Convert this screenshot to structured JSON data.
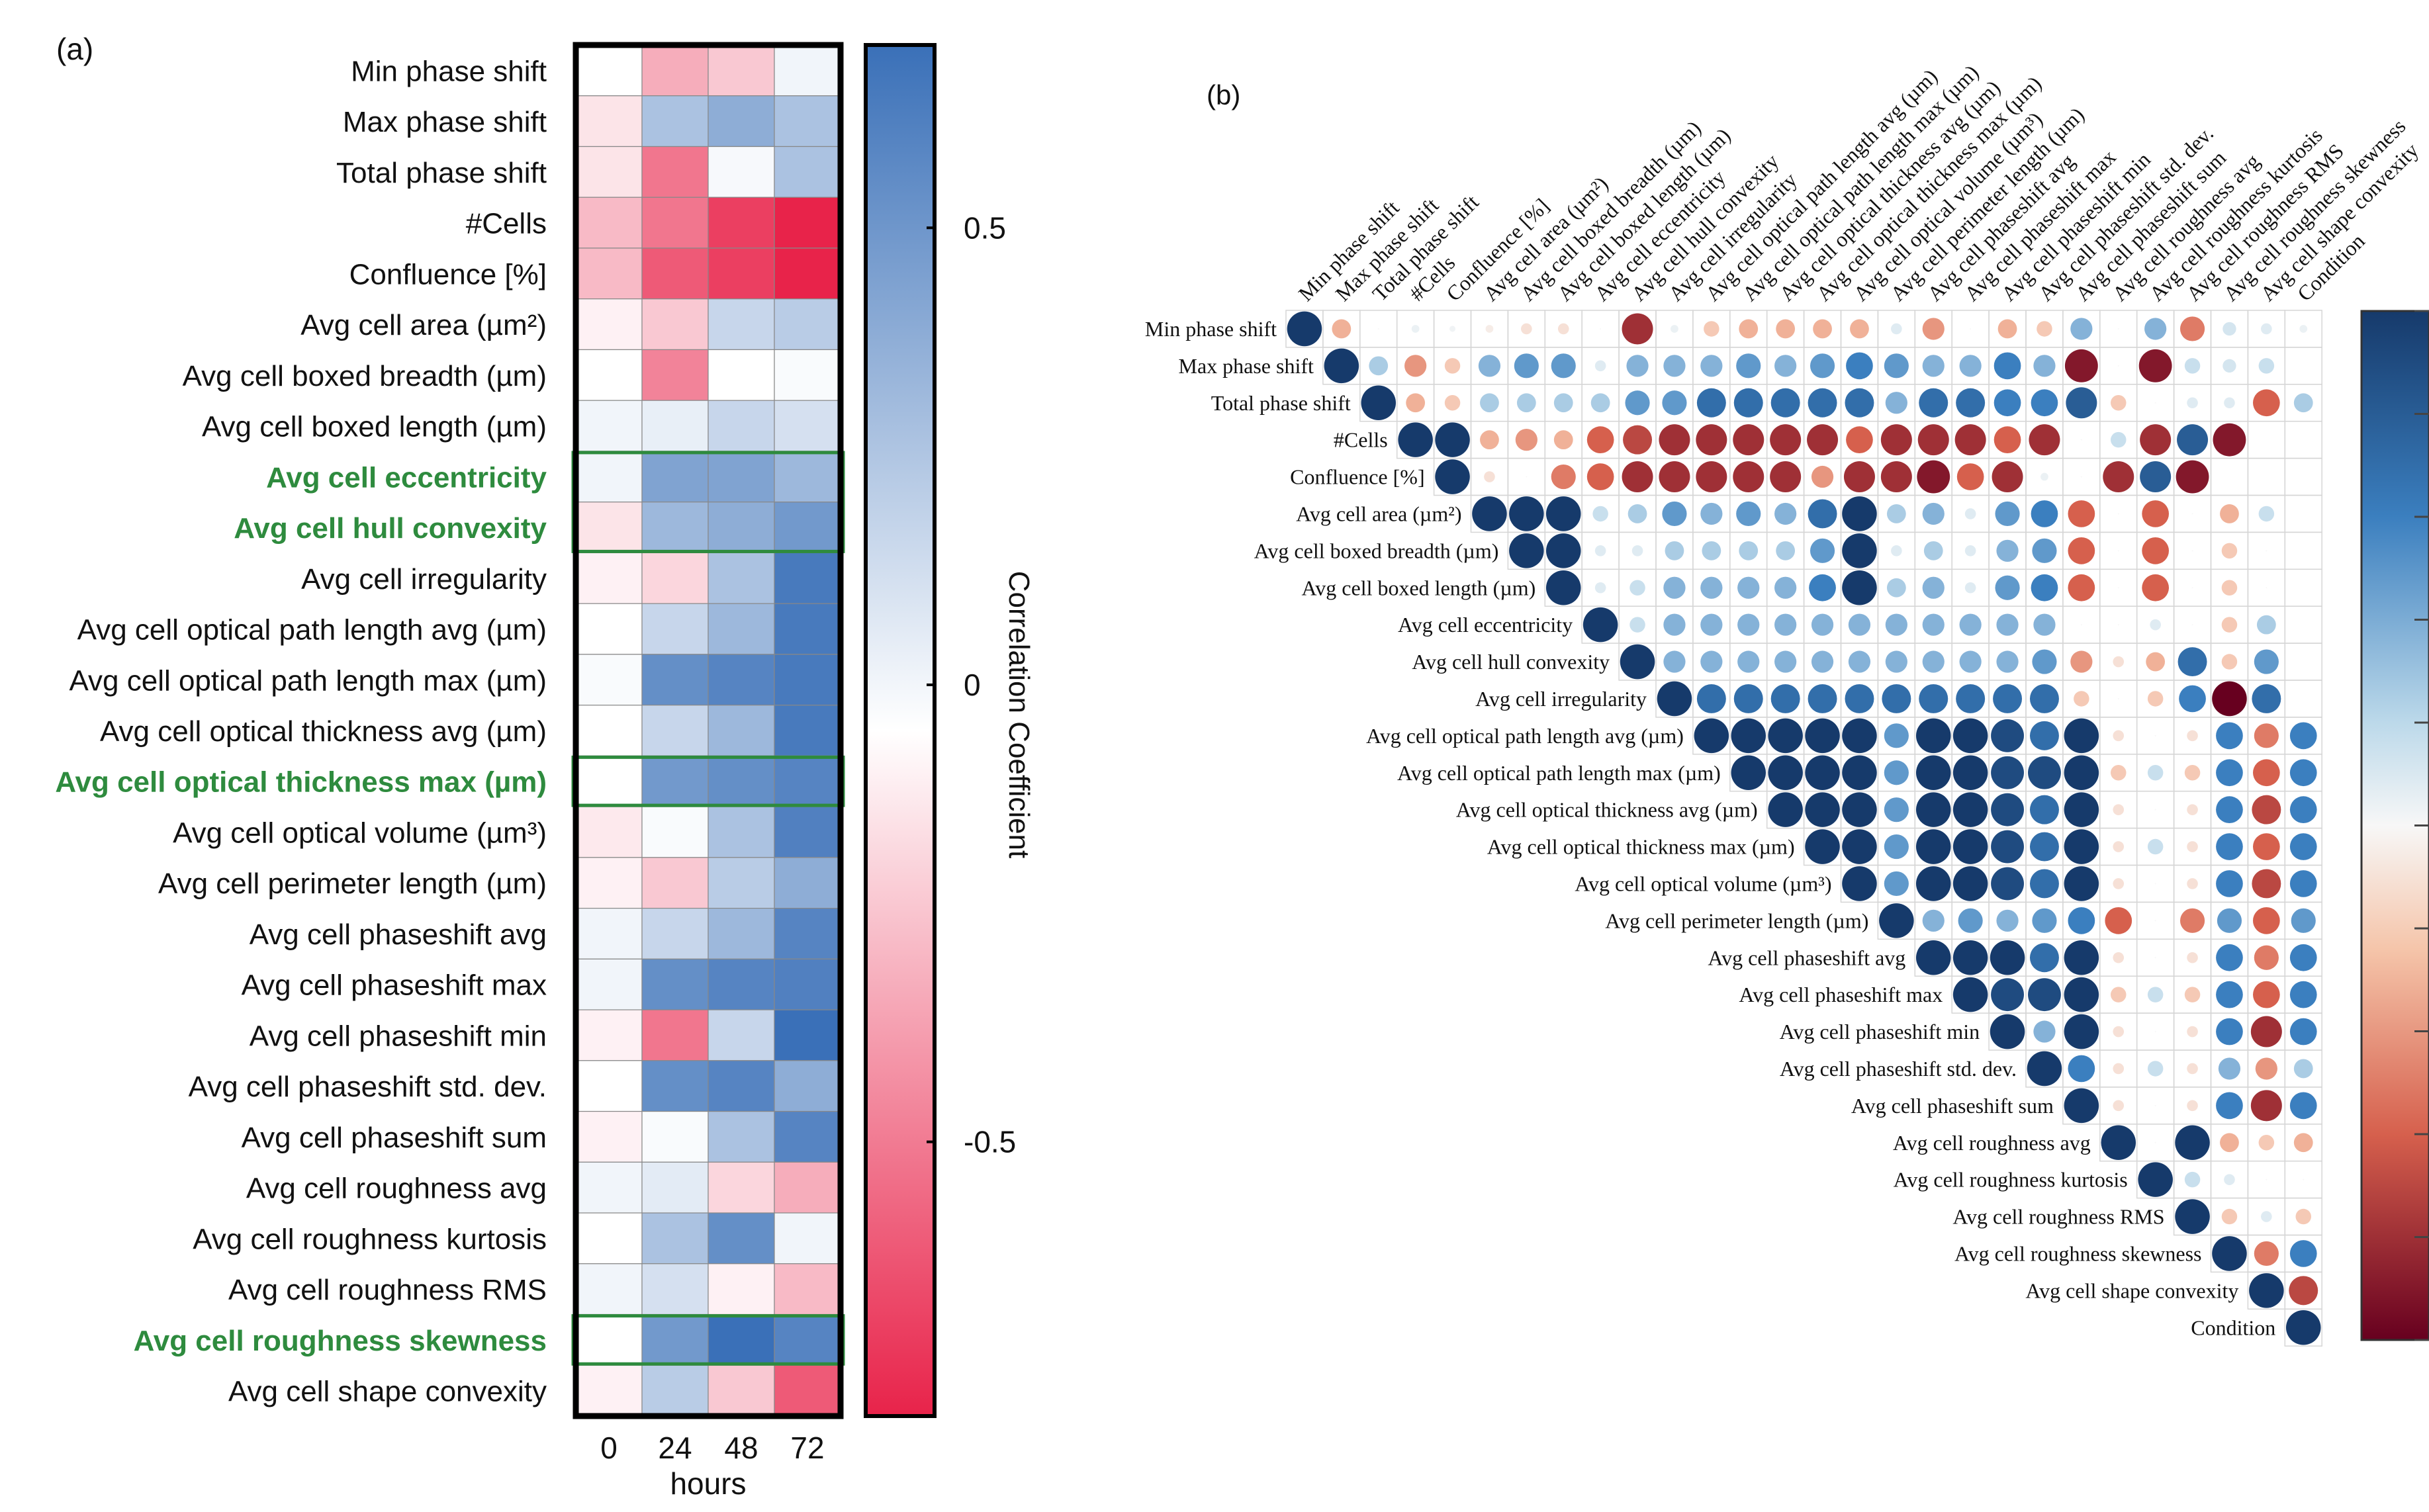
{
  "panel_a": {
    "label": "(a)",
    "colorbar": {
      "title": "Correlation Coefficient",
      "ticks": [
        "0.5",
        "0",
        "-0.5"
      ]
    },
    "x_ticks": [
      "0",
      "24",
      "48",
      "72"
    ],
    "x_label": "hours"
  },
  "panel_b": {
    "label": "(b)"
  },
  "chart_data": [
    {
      "type": "heatmap",
      "panel": "(a)",
      "xlabel": "hours",
      "colorbar_label": "Correlation Coefficient",
      "value_range": [
        -0.8,
        0.7
      ],
      "categories_x": [
        "0",
        "24",
        "48",
        "72"
      ],
      "categories_y": [
        "Min phase shift",
        "Max phase shift",
        "Total phase shift",
        "#Cells",
        "Confluence [%]",
        "Avg cell area (µm²)",
        "Avg cell boxed breadth (µm)",
        "Avg cell boxed length (µm)",
        "Avg cell eccentricity",
        "Avg cell hull convexity",
        "Avg cell irregularity",
        "Avg cell optical path length avg (µm)",
        "Avg cell optical path length max (µm)",
        "Avg cell optical thickness avg (µm)",
        "Avg cell optical thickness max (µm)",
        "Avg cell optical volume (µm³)",
        "Avg cell perimeter length (µm)",
        "Avg cell phaseshift avg",
        "Avg cell phaseshift max",
        "Avg cell phaseshift min",
        "Avg cell phaseshift std. dev.",
        "Avg cell phaseshift sum",
        "Avg cell roughness avg",
        "Avg cell roughness kurtosis",
        "Avg cell roughness RMS",
        "Avg cell roughness skewness",
        "Avg cell shape convexity"
      ],
      "highlighted_rows": [
        "Avg cell eccentricity",
        "Avg cell hull convexity",
        "Avg cell optical thickness max (µm)",
        "Avg cell roughness skewness"
      ],
      "values": [
        [
          0.0,
          -0.3,
          -0.2,
          0.05
        ],
        [
          -0.1,
          0.3,
          0.4,
          0.3
        ],
        [
          -0.1,
          -0.5,
          0.03,
          0.3
        ],
        [
          -0.25,
          -0.5,
          -0.7,
          -0.8
        ],
        [
          -0.25,
          -0.6,
          -0.7,
          -0.8
        ],
        [
          -0.05,
          -0.2,
          0.2,
          0.25
        ],
        [
          0.0,
          -0.45,
          0.0,
          0.02
        ],
        [
          0.05,
          0.08,
          0.2,
          0.15
        ],
        [
          0.05,
          0.45,
          0.45,
          0.35
        ],
        [
          -0.1,
          0.35,
          0.4,
          0.5
        ],
        [
          -0.05,
          -0.15,
          0.3,
          0.65
        ],
        [
          0.0,
          0.2,
          0.35,
          0.65
        ],
        [
          0.02,
          0.55,
          0.6,
          0.65
        ],
        [
          0.0,
          0.2,
          0.35,
          0.65
        ],
        [
          0.0,
          0.5,
          0.55,
          0.6
        ],
        [
          -0.08,
          0.02,
          0.3,
          0.62
        ],
        [
          -0.05,
          -0.2,
          0.25,
          0.4
        ],
        [
          0.05,
          0.2,
          0.35,
          0.6
        ],
        [
          0.05,
          0.55,
          0.6,
          0.62
        ],
        [
          -0.05,
          -0.5,
          0.2,
          0.7
        ],
        [
          0.0,
          0.55,
          0.6,
          0.4
        ],
        [
          -0.05,
          0.02,
          0.3,
          0.6
        ],
        [
          0.05,
          0.1,
          -0.15,
          -0.3
        ],
        [
          0.0,
          0.3,
          0.55,
          0.05
        ],
        [
          0.05,
          0.15,
          -0.05,
          -0.25
        ],
        [
          0.0,
          0.5,
          0.7,
          0.6
        ],
        [
          -0.05,
          0.25,
          -0.2,
          -0.6
        ]
      ]
    },
    {
      "type": "heatmap",
      "panel": "(b)",
      "subtype": "correlation-matrix-upper-triangle",
      "value_range": [
        -1,
        1
      ],
      "variables": [
        "Min phase shift",
        "Max phase shift",
        "Total phase shift",
        "#Cells",
        "Confluence [%]",
        "Avg cell area (µm²)",
        "Avg cell boxed breadth (µm)",
        "Avg cell boxed length (µm)",
        "Avg cell eccentricity",
        "Avg cell hull convexity",
        "Avg cell irregularity",
        "Avg cell optical path length avg (µm)",
        "Avg cell optical path length max (µm)",
        "Avg cell optical thickness avg (µm)",
        "Avg cell optical thickness max (µm)",
        "Avg cell optical volume (µm³)",
        "Avg cell perimeter length (µm)",
        "Avg cell phaseshift avg",
        "Avg cell phaseshift max",
        "Avg cell phaseshift min",
        "Avg cell phaseshift std. dev.",
        "Avg cell phaseshift sum",
        "Avg cell roughness avg",
        "Avg cell roughness kurtosis",
        "Avg cell roughness RMS",
        "Avg cell roughness skewness",
        "Avg cell shape convexity",
        "Condition"
      ],
      "upper_triangle_rows": [
        [
          1,
          -0.3,
          0,
          0.05,
          0.03,
          -0.05,
          -0.1,
          -0.1,
          0,
          -0.8,
          0.05,
          -0.2,
          -0.3,
          -0.3,
          -0.3,
          -0.3,
          0.1,
          -0.4,
          0,
          -0.3,
          -0.2,
          0.4,
          0,
          0.4,
          -0.5,
          0.15,
          0.1,
          0.05
        ],
        [
          1,
          0.3,
          -0.4,
          -0.2,
          0.4,
          0.5,
          0.5,
          0.1,
          0.4,
          0.4,
          0.4,
          0.5,
          0.4,
          0.5,
          0.6,
          0.5,
          0.4,
          0.4,
          0.6,
          0.4,
          -0.9,
          0,
          -0.9,
          0.2,
          0.15,
          0.2
        ],
        [
          1,
          -0.3,
          -0.2,
          0.3,
          0.3,
          0.3,
          0.3,
          0.5,
          0.5,
          0.7,
          0.7,
          0.7,
          0.7,
          0.7,
          0.4,
          0.7,
          0.7,
          0.6,
          0.6,
          0.8,
          -0.2,
          0,
          0.1,
          0.1,
          -0.6,
          0.3
        ],
        [
          1,
          1,
          -0.3,
          -0.4,
          -0.3,
          -0.6,
          -0.7,
          -0.8,
          -0.8,
          -0.8,
          -0.8,
          -0.8,
          -0.6,
          -0.8,
          -0.8,
          -0.8,
          -0.6,
          -0.8,
          0,
          0.2,
          -0.8,
          0.8,
          -0.9
        ],
        [
          1,
          -0.1,
          0,
          -0.5,
          -0.6,
          -0.8,
          -0.8,
          -0.8,
          -0.8,
          -0.8,
          -0.4,
          -0.8,
          -0.8,
          -0.9,
          -0.6,
          -0.8,
          0.05,
          0,
          -0.8,
          0.8,
          -0.9
        ],
        [
          1,
          1,
          1,
          0.2,
          0.3,
          0.5,
          0.4,
          0.5,
          0.4,
          0.7,
          1,
          0.3,
          0.4,
          0.1,
          0.5,
          0.6,
          -0.6,
          0,
          -0.6,
          0,
          -0.3,
          0.2
        ],
        [
          1,
          1,
          0.1,
          0.1,
          0.3,
          0.3,
          0.3,
          0.3,
          0.5,
          1,
          0.1,
          0.3,
          0.1,
          0.4,
          0.5,
          -0.6,
          0,
          -0.6,
          0,
          -0.2,
          0
        ],
        [
          1,
          0.1,
          0.2,
          0.4,
          0.4,
          0.4,
          0.4,
          0.6,
          1,
          0.3,
          0.4,
          0.1,
          0.5,
          0.6,
          -0.6,
          0,
          -0.6,
          0,
          -0.2,
          0
        ],
        [
          1,
          0.2,
          0.4,
          0.4,
          0.4,
          0.4,
          0.4,
          0.4,
          0.4,
          0.4,
          0.4,
          0.4,
          0.4,
          0,
          0,
          0.1,
          0,
          -0.2,
          0.3
        ],
        [
          1,
          0.4,
          0.4,
          0.4,
          0.4,
          0.4,
          0.4,
          0.4,
          0.4,
          0.4,
          0.4,
          0.5,
          -0.4,
          -0.1,
          -0.3,
          0.7,
          -0.2,
          0.5
        ],
        [
          1,
          0.7,
          0.7,
          0.7,
          0.7,
          0.7,
          0.7,
          0.7,
          0.7,
          0.7,
          0.7,
          -0.2,
          0,
          -0.2,
          0.6,
          -1,
          0.7
        ],
        [
          1,
          1,
          1,
          1,
          1,
          0.5,
          1,
          1,
          0.9,
          0.7,
          1,
          -0.1,
          0,
          -0.1,
          0.6,
          -0.5,
          0.6
        ],
        [
          1,
          1,
          1,
          1,
          0.5,
          1,
          1,
          0.9,
          0.9,
          1,
          -0.2,
          0.2,
          -0.2,
          0.6,
          -0.6,
          0.6
        ],
        [
          1,
          1,
          1,
          0.5,
          1,
          1,
          0.9,
          0.7,
          1,
          -0.1,
          0,
          -0.1,
          0.6,
          -0.7,
          0.6
        ],
        [
          1,
          1,
          0.5,
          1,
          1,
          0.9,
          0.7,
          1,
          -0.1,
          0.2,
          -0.1,
          0.6,
          -0.6,
          0.6
        ],
        [
          1,
          0.5,
          1,
          1,
          0.9,
          0.7,
          1,
          -0.1,
          0,
          -0.1,
          0.6,
          -0.7,
          0.6
        ],
        [
          1,
          0.4,
          0.5,
          0.4,
          0.5,
          0.6,
          -0.6,
          0,
          -0.5,
          0.5,
          -0.6,
          0.5
        ],
        [
          1,
          1,
          1,
          0.7,
          1,
          -0.1,
          0,
          -0.1,
          0.6,
          -0.5,
          0.6
        ],
        [
          1,
          0.9,
          0.9,
          1,
          -0.2,
          0.2,
          -0.2,
          0.6,
          -0.6,
          0.6
        ],
        [
          1,
          0.4,
          1,
          -0.1,
          0,
          -0.1,
          0.6,
          -0.8,
          0.6
        ],
        [
          1,
          0.6,
          -0.1,
          0.2,
          -0.1,
          0.4,
          -0.4,
          0.3
        ],
        [
          1,
          -0.1,
          0,
          -0.1,
          0.6,
          -0.8,
          0.6
        ],
        [
          1,
          0,
          1,
          -0.3,
          -0.2,
          -0.3
        ],
        [
          1,
          0.2,
          0.1,
          0,
          0
        ],
        [
          1,
          -0.2,
          0.1,
          -0.2
        ],
        [
          1,
          -0.5,
          0.6
        ],
        [
          1,
          -0.7
        ],
        [
          1
        ]
      ]
    }
  ]
}
